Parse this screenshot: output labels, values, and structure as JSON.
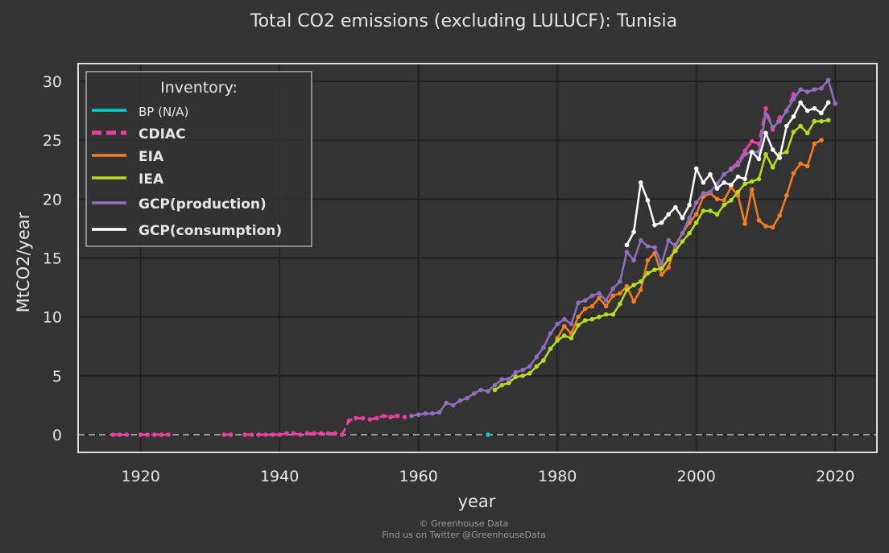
{
  "chart_data": {
    "type": "line",
    "title": "Total CO2 emissions (excluding LULUCF): Tunisia",
    "xlabel": "year",
    "ylabel": "MtCO2/year",
    "xlim": [
      1911,
      2026
    ],
    "ylim": [
      -1.5,
      31.5
    ],
    "xticks": [
      "1920",
      "1940",
      "1960",
      "1980",
      "2000",
      "2020"
    ],
    "yticks": [
      "0",
      "5",
      "10",
      "15",
      "20",
      "25",
      "30"
    ],
    "grid": true,
    "legend": {
      "title": "Inventory:",
      "placement": "top-left"
    },
    "series": [
      {
        "name": "BP (N/A)",
        "color": "#00d0d0",
        "style": "solid",
        "x": [
          1970
        ],
        "y": [
          0
        ]
      },
      {
        "name": "CDIAC",
        "color": "#ef3f9e",
        "style": "dashed",
        "x": [
          1916,
          1917,
          1918,
          1920,
          1921,
          1922,
          1923,
          1924,
          1932,
          1933,
          1935,
          1936,
          1937,
          1938,
          1939,
          1940,
          1941,
          1942,
          1943,
          1944,
          1945,
          1946,
          1947,
          1948,
          1949,
          1950,
          1951,
          1952,
          1953,
          1954,
          1955,
          1956,
          1957,
          1958,
          2005,
          2006,
          2007,
          2008,
          2009,
          2010,
          2011,
          2012,
          2013,
          2014
        ],
        "y": [
          0,
          0,
          0,
          0,
          0,
          0,
          0,
          0,
          0,
          0,
          0,
          0,
          0,
          0,
          0,
          0,
          0.1,
          0.1,
          0,
          0.1,
          0.1,
          0.1,
          0.1,
          0.1,
          0,
          1.2,
          1.4,
          1.4,
          1.3,
          1.4,
          1.6,
          1.5,
          1.6,
          1.5,
          22.6,
          23.1,
          24.1,
          24.9,
          24.7,
          27.7,
          25.9,
          26.9,
          27.5,
          28.9
        ]
      },
      {
        "name": "EIA",
        "color": "#f57f20",
        "style": "solid",
        "x": [
          1980,
          1981,
          1982,
          1983,
          1984,
          1985,
          1986,
          1987,
          1988,
          1989,
          1990,
          1991,
          1992,
          1993,
          1994,
          1995,
          1996,
          1997,
          1998,
          1999,
          2000,
          2001,
          2002,
          2003,
          2004,
          2005,
          2006,
          2007,
          2008,
          2009,
          2010,
          2011,
          2012,
          2013,
          2014,
          2015,
          2016,
          2017,
          2018
        ],
        "y": [
          8.2,
          9.2,
          8.6,
          10.0,
          10.7,
          10.9,
          11.6,
          10.9,
          11.8,
          12.0,
          12.6,
          11.3,
          12.3,
          14.8,
          15.4,
          13.6,
          14.2,
          16.1,
          17.1,
          18.0,
          18.7,
          20.2,
          20.5,
          20.0,
          19.9,
          21.0,
          20.3,
          17.9,
          20.8,
          18.2,
          17.7,
          17.6,
          18.6,
          20.3,
          22.2,
          23.0,
          22.8,
          24.7,
          25.0
        ]
      },
      {
        "name": "IEA",
        "color": "#b7dd1e",
        "style": "solid",
        "x": [
          1971,
          1972,
          1973,
          1974,
          1975,
          1976,
          1977,
          1978,
          1979,
          1980,
          1981,
          1982,
          1983,
          1984,
          1985,
          1986,
          1987,
          1988,
          1989,
          1990,
          1991,
          1992,
          1993,
          1994,
          1995,
          1996,
          1997,
          1998,
          1999,
          2000,
          2001,
          2002,
          2003,
          2004,
          2005,
          2006,
          2007,
          2008,
          2009,
          2010,
          2011,
          2012,
          2013,
          2014,
          2015,
          2016,
          2017,
          2018,
          2019
        ],
        "y": [
          3.8,
          4.2,
          4.4,
          4.9,
          5.0,
          5.2,
          5.8,
          6.3,
          7.3,
          8.0,
          8.4,
          8.2,
          9.3,
          9.7,
          9.8,
          10.0,
          10.2,
          10.2,
          11.1,
          12.3,
          12.7,
          13.0,
          13.7,
          14.0,
          14.1,
          14.9,
          15.6,
          16.4,
          17.1,
          18.0,
          19.0,
          19.0,
          18.7,
          19.5,
          19.9,
          20.6,
          21.3,
          21.5,
          21.7,
          23.8,
          22.7,
          23.8,
          24.0,
          25.7,
          26.2,
          25.6,
          26.6,
          26.6,
          26.7
        ]
      },
      {
        "name": "GCP(production)",
        "color": "#8f6fc0",
        "style": "solid",
        "x": [
          1959,
          1960,
          1961,
          1962,
          1963,
          1964,
          1965,
          1966,
          1967,
          1968,
          1969,
          1970,
          1971,
          1972,
          1973,
          1974,
          1975,
          1976,
          1977,
          1978,
          1979,
          1980,
          1981,
          1982,
          1983,
          1984,
          1985,
          1986,
          1987,
          1988,
          1989,
          1990,
          1991,
          1992,
          1993,
          1994,
          1995,
          1996,
          1997,
          1998,
          1999,
          2000,
          2001,
          2002,
          2003,
          2004,
          2005,
          2006,
          2007,
          2008,
          2009,
          2010,
          2011,
          2012,
          2013,
          2014,
          2015,
          2016,
          2017,
          2018,
          2019,
          2020
        ],
        "y": [
          1.6,
          1.7,
          1.8,
          1.8,
          1.9,
          2.7,
          2.5,
          2.9,
          3.1,
          3.5,
          3.8,
          3.7,
          4.2,
          4.7,
          4.7,
          5.3,
          5.5,
          5.8,
          6.6,
          7.4,
          8.6,
          9.4,
          9.8,
          9.4,
          11.2,
          11.4,
          11.8,
          12.0,
          11.4,
          12.4,
          13.0,
          15.5,
          14.8,
          16.5,
          16.0,
          15.9,
          14.5,
          16.5,
          16.0,
          17.1,
          18.4,
          19.7,
          20.5,
          20.6,
          21.3,
          22.1,
          22.5,
          22.9,
          23.8,
          24.0,
          24.0,
          27.2,
          26.1,
          26.6,
          27.5,
          28.5,
          29.3,
          29.1,
          29.3,
          29.4,
          30.1,
          28.1
        ]
      },
      {
        "name": "GCP(consumption)",
        "color": "#ffffff",
        "style": "solid",
        "x": [
          1990,
          1991,
          1992,
          1993,
          1994,
          1995,
          1996,
          1997,
          1998,
          1999,
          2000,
          2001,
          2002,
          2003,
          2004,
          2005,
          2006,
          2007,
          2008,
          2009,
          2010,
          2011,
          2012,
          2013,
          2014,
          2015,
          2016,
          2017,
          2018,
          2019
        ],
        "y": [
          16.1,
          17.2,
          21.4,
          19.9,
          17.8,
          18.0,
          18.7,
          19.3,
          18.4,
          19.5,
          22.6,
          21.4,
          22.1,
          20.9,
          21.4,
          21.2,
          21.9,
          21.7,
          24.0,
          23.4,
          25.6,
          24.2,
          23.5,
          26.2,
          27.0,
          28.2,
          27.5,
          27.7,
          27.3,
          28.2
        ]
      }
    ]
  },
  "footer": {
    "line1": "© Greenhouse Data",
    "line2": "Find us on Twitter @GreenhouseData"
  }
}
